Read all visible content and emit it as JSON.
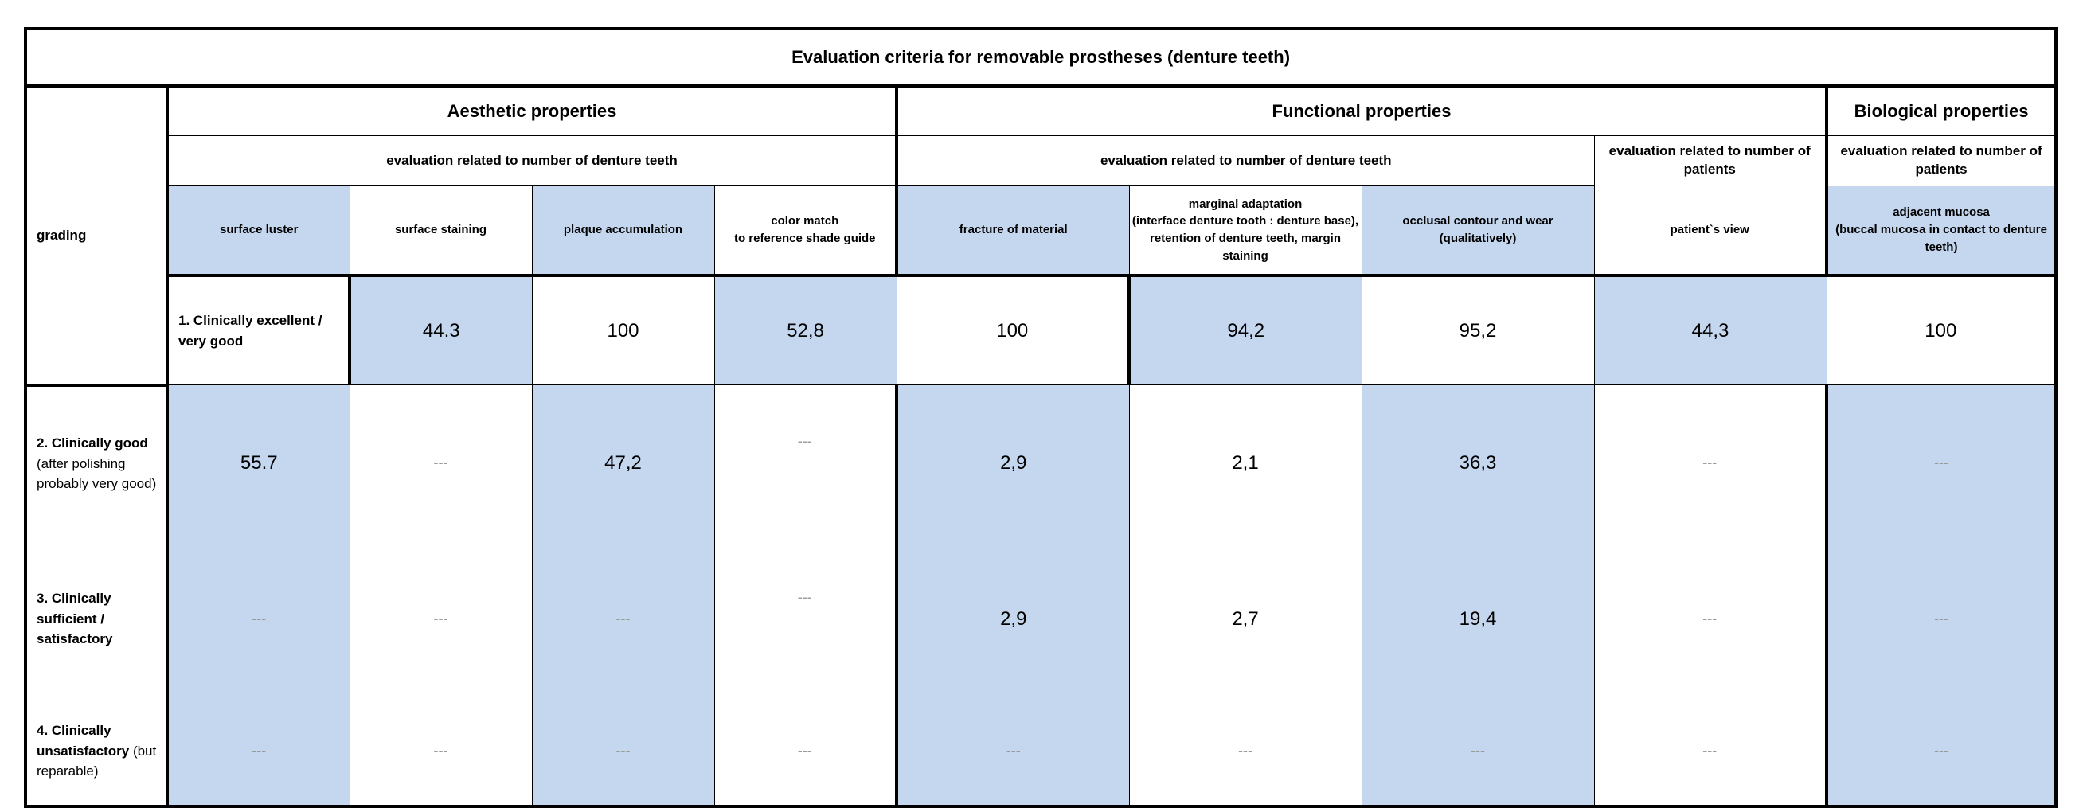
{
  "title": "Evaluation criteria for removable prostheses (denture teeth)",
  "grading_header": "grading",
  "groups": {
    "aesthetic": "Aesthetic properties",
    "functional": "Functional properties",
    "biological": "Biological properties"
  },
  "subgroups": {
    "aesthetic_teeth": "evaluation related to number of denture teeth",
    "functional_teeth": "evaluation related to number of denture teeth",
    "functional_patients": "evaluation related to number of patients",
    "biological_patients": "evaluation related to number of patients"
  },
  "criteria": [
    "surface luster",
    "surface staining",
    "plaque accumulation",
    "color match\nto reference shade guide",
    "fracture of material",
    "marginal adaptation\n(interface denture tooth : denture base), retention of denture teeth, margin staining",
    "occlusal contour and wear\n(qualitatively)",
    "patient`s view",
    "adjacent mucosa\n(buccal mucosa in contact to denture teeth)"
  ],
  "rows": [
    {
      "label_bold": "1. Clinically excellent / very good",
      "label_normal": "",
      "values": [
        "44.3",
        "100",
        "52,8",
        "100",
        "94,2",
        "95,2",
        "44,3",
        "100",
        "100"
      ]
    },
    {
      "label_bold": "2. Clinically good",
      "label_normal": "(after polishing probably very good)",
      "values": [
        "55.7",
        "---",
        "47,2",
        "---",
        "2,9",
        "2,1",
        "36,3",
        "---",
        "---"
      ]
    },
    {
      "label_bold": "3. Clinically sufficient / satisfactory",
      "label_normal": "",
      "values": [
        "---",
        "---",
        "---",
        "---",
        "2,9",
        "2,7",
        "19,4",
        "---",
        "---"
      ]
    },
    {
      "label_bold": "4. Clinically unsatisfactory",
      "label_normal": "(but reparable)",
      "values": [
        "---",
        "---",
        "---",
        "---",
        "---",
        "---",
        "---",
        "---",
        "---"
      ]
    }
  ],
  "colors": {
    "highlight": "#c5d7ef",
    "placeholder_text": "#9a9a9a"
  }
}
